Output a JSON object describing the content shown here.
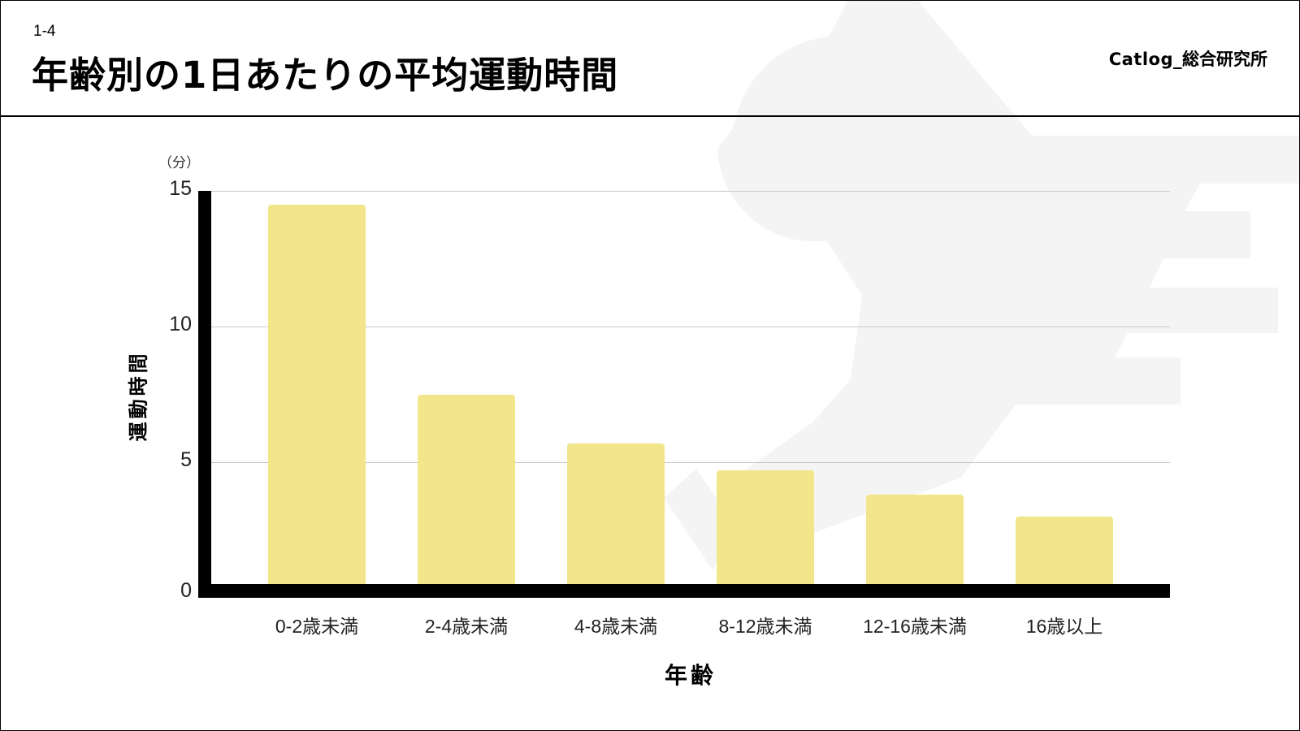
{
  "header": {
    "section_number": "1-4",
    "title": "年齢別の1日あたりの平均運動時間",
    "brand_latin": "Catlog_",
    "brand_jp": "総合研究所"
  },
  "colors": {
    "bar": "#f3e58a",
    "axis": "#000000",
    "gridline": "#c9c9c9",
    "watermark": "#f4f4f4"
  },
  "chart": {
    "unit_label": "（分）",
    "y_title": "運動時間",
    "x_title": "年齢",
    "y_ticks": [
      "15",
      "10",
      "5",
      "0"
    ],
    "x_labels": [
      "0-2歳未満",
      "2-4歳未満",
      "4-8歳未満",
      "8-12歳未満",
      "12-16歳未満",
      "16歳以上"
    ]
  },
  "chart_data": {
    "type": "bar",
    "title": "年齢別の1日あたりの平均運動時間",
    "xlabel": "年齢",
    "ylabel": "運動時間",
    "y_unit": "分",
    "categories": [
      "0-2歳未満",
      "2-4歳未満",
      "4-8歳未満",
      "8-12歳未満",
      "12-16歳未満",
      "16歳以上"
    ],
    "values": [
      14.5,
      7.5,
      5.7,
      4.7,
      3.8,
      3.0
    ],
    "ylim": [
      0,
      15
    ],
    "yticks": [
      0,
      5,
      10,
      15
    ],
    "grid": true,
    "legend": null
  }
}
